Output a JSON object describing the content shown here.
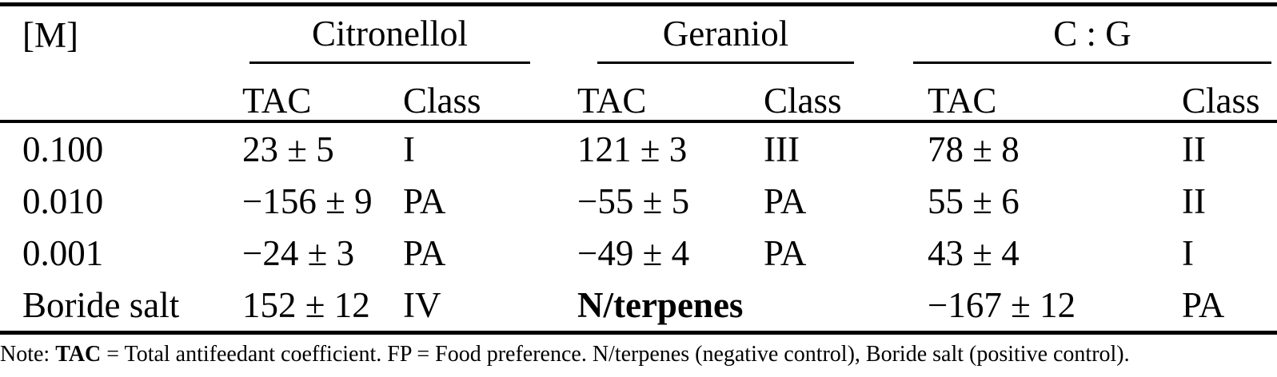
{
  "colors": {
    "background": "#ffffff",
    "text": "#000000",
    "rule": "#000000"
  },
  "table": {
    "corner_header": "[M]",
    "group_headers": {
      "citronellol": "Citronellol",
      "geraniol": "Geraniol",
      "cg": "C : G"
    },
    "subheaders": {
      "tac": "TAC",
      "class": "Class"
    },
    "rows": [
      {
        "label": "0.100",
        "cit_tac": "23 ± 5",
        "cit_class": "I",
        "ger_tac": "121 ± 3",
        "ger_class": "III",
        "cg_tac": "78 ± 8",
        "cg_class": "II"
      },
      {
        "label": "0.010",
        "cit_tac": "−156 ± 9",
        "cit_class": "PA",
        "ger_tac": "−55 ± 5",
        "ger_class": "PA",
        "cg_tac": "55 ± 6",
        "cg_class": "II"
      },
      {
        "label": "0.001",
        "cit_tac": "−24 ± 3",
        "cit_class": "PA",
        "ger_tac": "−49 ± 4",
        "ger_class": "PA",
        "cg_tac": "43 ± 4",
        "cg_class": "I"
      },
      {
        "label": "Boride salt",
        "cit_tac": "152 ± 12",
        "cit_class": "IV",
        "ger_tac": "N/terpenes",
        "ger_class": "",
        "cg_tac": "−167 ± 12",
        "cg_class": "PA"
      }
    ],
    "note": {
      "prefix": "Note: ",
      "bold_term": "TAC",
      "rest": " = Total antifeedant coefficient. FP = Food preference. N/terpenes (negative control), Boride salt (positive control)."
    }
  }
}
